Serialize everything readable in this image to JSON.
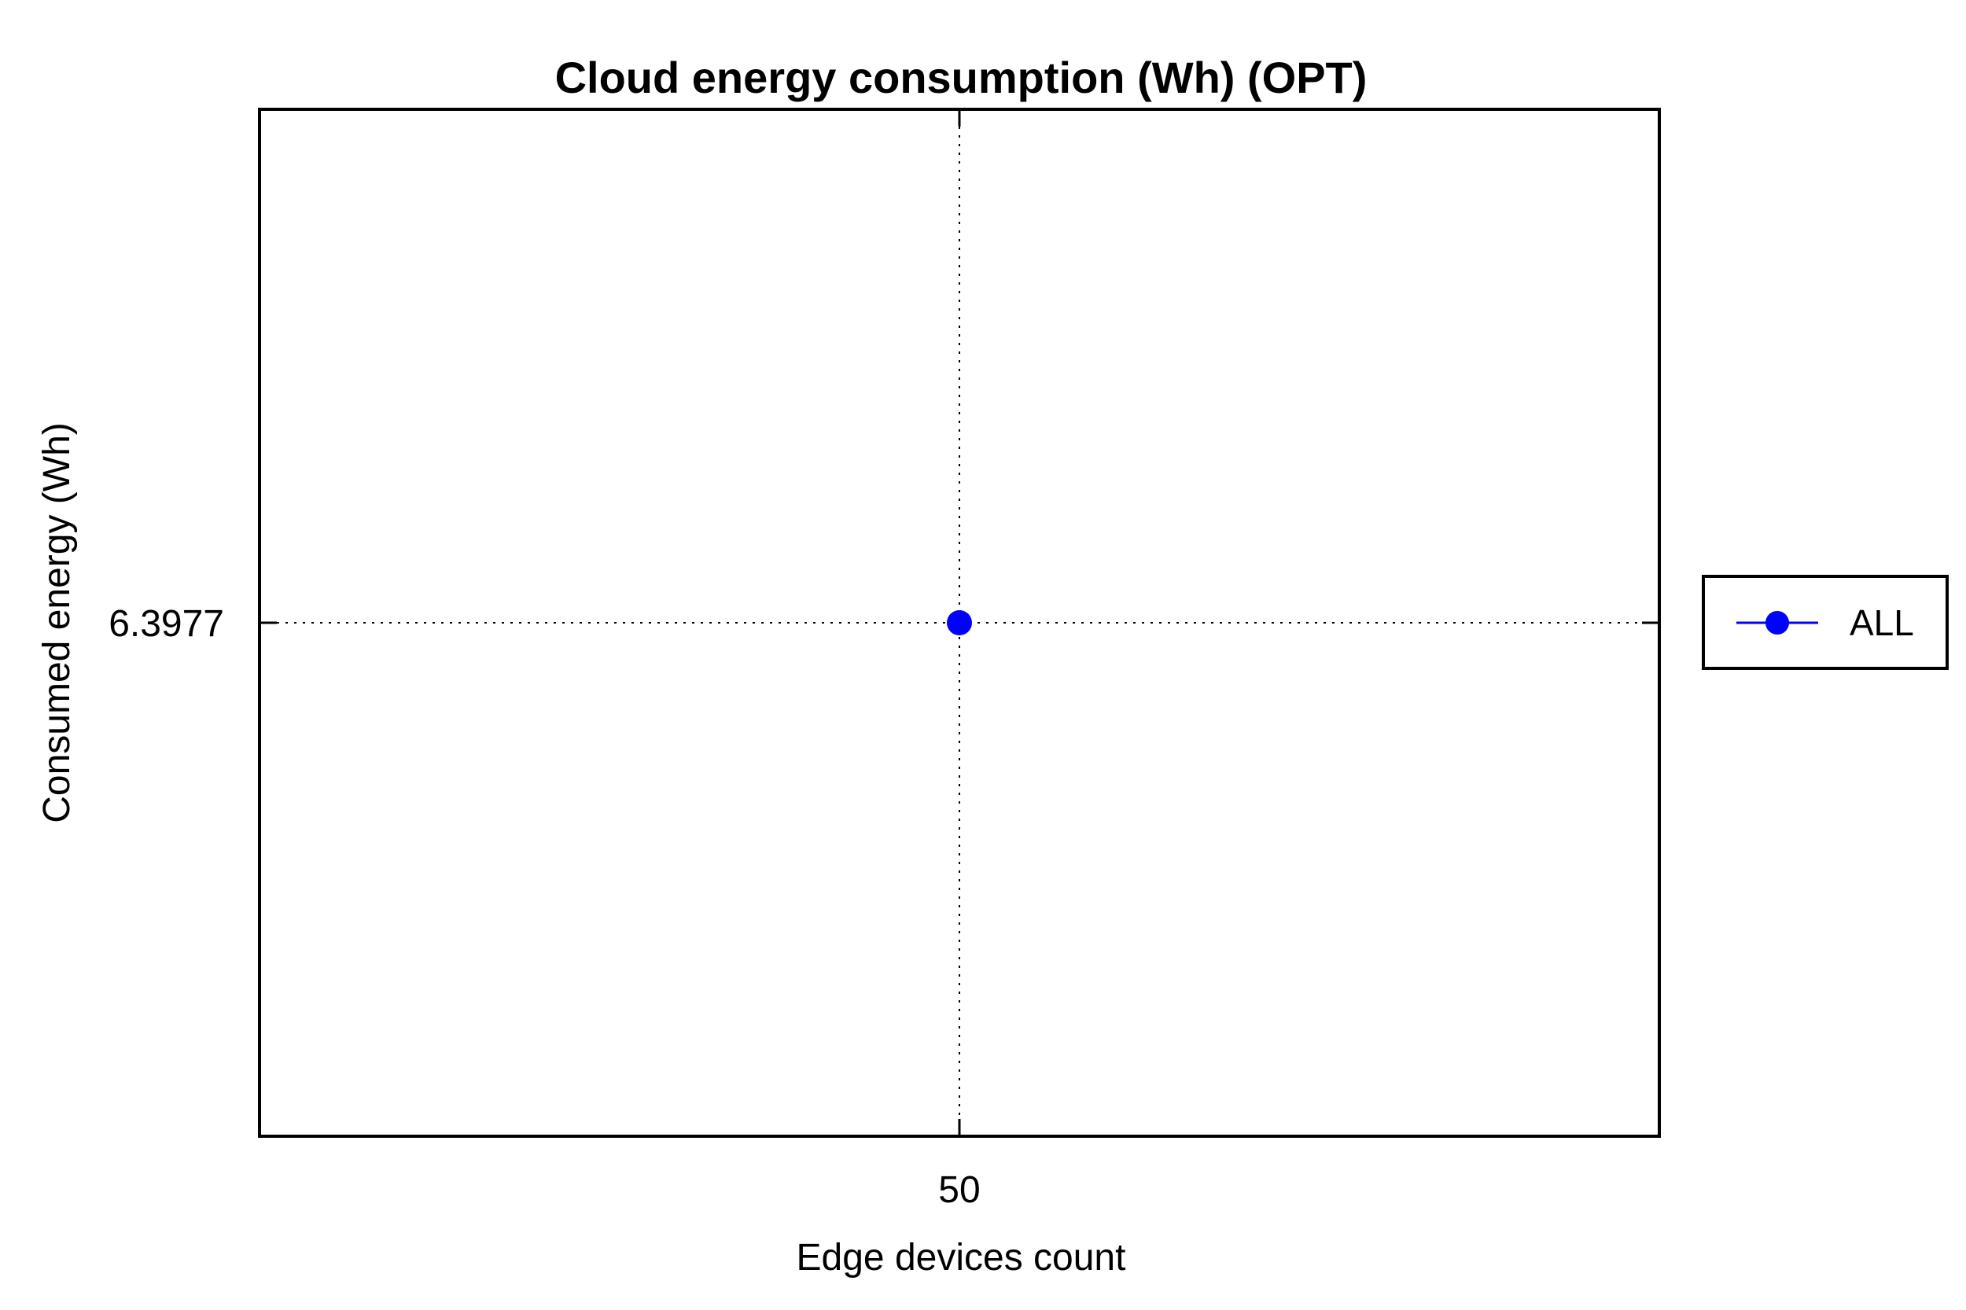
{
  "chart_data": {
    "type": "line",
    "title": "Cloud energy consumption (Wh) (OPT)",
    "xlabel": "Edge devices count",
    "ylabel": "Consumed energy (Wh)",
    "x_ticks": [
      "50"
    ],
    "y_ticks": [
      "6.3977"
    ],
    "xlim": [
      49,
      51
    ],
    "ylim": [
      5.3977,
      7.3977
    ],
    "grid": true,
    "legend_position": "right",
    "series": [
      {
        "name": "ALL",
        "color": "#0000ff",
        "marker": "circle",
        "x": [
          50
        ],
        "y": [
          6.3977
        ]
      }
    ]
  }
}
